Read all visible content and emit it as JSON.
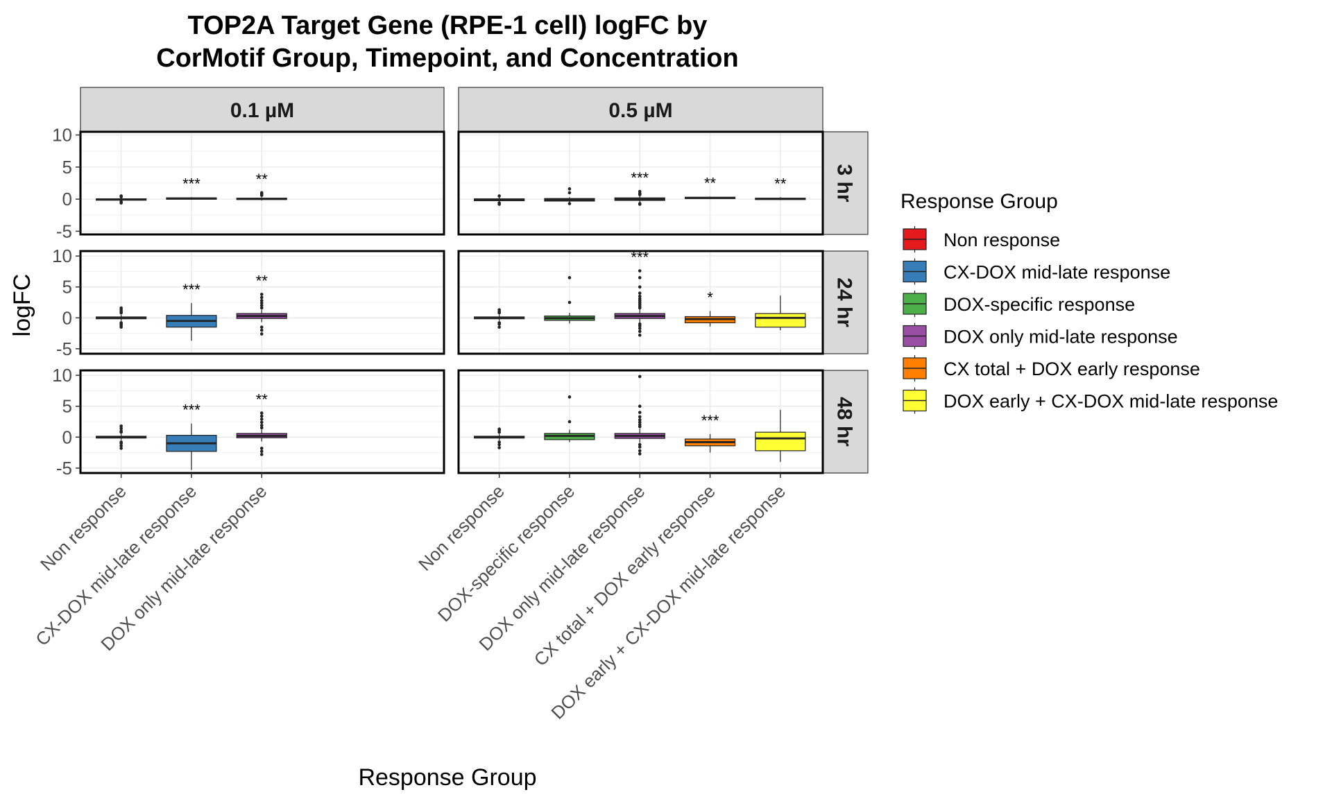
{
  "chart_data": {
    "type": "box",
    "title_lines": [
      "TOP2A Target Gene (RPE-1 cell) logFC by",
      "CorMotif Group, Timepoint, and Concentration"
    ],
    "xlabel": "Response Group",
    "ylabel": "logFC",
    "y_ticks": [
      -5,
      0,
      5,
      10
    ],
    "legend": {
      "title": "Response Group",
      "position": "right",
      "entries": [
        {
          "label": "Non response",
          "color": "#E41A1C"
        },
        {
          "label": "CX-DOX mid-late response",
          "color": "#377EB8"
        },
        {
          "label": "DOX-specific response",
          "color": "#4DAF4A"
        },
        {
          "label": "DOX only mid-late response",
          "color": "#984EA3"
        },
        {
          "label": "CX total + DOX early response",
          "color": "#FF7F00"
        },
        {
          "label": "DOX early + CX-DOX mid-late response",
          "color": "#FFFF33"
        }
      ]
    },
    "facet_cols": [
      {
        "label": "0.1 µM",
        "categories": [
          "Non response",
          "CX-DOX mid-late response",
          "DOX only mid-late response"
        ]
      },
      {
        "label": "0.5 µM",
        "categories": [
          "Non response",
          "DOX-specific response",
          "DOX only mid-late response",
          "CX total + DOX early response",
          "DOX early + CX-DOX mid-late response"
        ]
      }
    ],
    "facet_rows": [
      {
        "label": "3 hr",
        "ylim": [
          -5.5,
          10.5
        ]
      },
      {
        "label": "24 hr",
        "ylim": [
          -5.8,
          10.8
        ]
      },
      {
        "label": "48 hr",
        "ylim": [
          -5.8,
          10.8
        ]
      }
    ],
    "panels": [
      {
        "row": 0,
        "col": 0,
        "boxes": [
          {
            "group": "Non response",
            "q1": -0.15,
            "median": -0.05,
            "q3": 0.05,
            "whisker_low": -0.3,
            "whisker_high": 0.2,
            "outliers": [
              -0.6,
              -0.4,
              0.35,
              0.5
            ],
            "sig": ""
          },
          {
            "group": "CX-DOX mid-late response",
            "q1": 0.0,
            "median": 0.1,
            "q3": 0.2,
            "whisker_low": -0.1,
            "whisker_high": 0.3,
            "outliers": [],
            "sig": "***"
          },
          {
            "group": "DOX only mid-late response",
            "q1": -0.05,
            "median": 0.05,
            "q3": 0.15,
            "whisker_low": -0.2,
            "whisker_high": 0.3,
            "outliers": [
              0.6,
              0.8,
              1.0
            ],
            "sig": "**"
          }
        ]
      },
      {
        "row": 0,
        "col": 1,
        "boxes": [
          {
            "group": "Non response",
            "q1": -0.25,
            "median": -0.1,
            "q3": 0.05,
            "whisker_low": -0.5,
            "whisker_high": 0.3,
            "outliers": [
              -0.8,
              -0.6,
              0.5
            ],
            "sig": ""
          },
          {
            "group": "DOX-specific response",
            "q1": -0.3,
            "median": -0.1,
            "q3": 0.1,
            "whisker_low": -0.5,
            "whisker_high": 0.3,
            "outliers": [
              1.6,
              1.0,
              -0.7
            ],
            "sig": ""
          },
          {
            "group": "DOX only mid-late response",
            "q1": -0.2,
            "median": 0.0,
            "q3": 0.2,
            "whisker_low": -0.5,
            "whisker_high": 0.5,
            "outliers": [
              0.7,
              0.9,
              1.2,
              -0.7,
              -0.8
            ],
            "sig": "***"
          },
          {
            "group": "CX total + DOX early response",
            "q1": 0.1,
            "median": 0.2,
            "q3": 0.3,
            "whisker_low": 0.0,
            "whisker_high": 0.4,
            "outliers": [],
            "sig": "**"
          },
          {
            "group": "DOX early + CX-DOX mid-late response",
            "q1": -0.05,
            "median": 0.05,
            "q3": 0.15,
            "whisker_low": -0.15,
            "whisker_high": 0.3,
            "outliers": [],
            "sig": "**"
          }
        ]
      },
      {
        "row": 1,
        "col": 0,
        "boxes": [
          {
            "group": "Non response",
            "q1": -0.15,
            "median": 0.0,
            "q3": 0.15,
            "whisker_low": -0.5,
            "whisker_high": 0.5,
            "outliers": [
              -1.5,
              -1.2,
              -1.0,
              -0.8,
              0.8,
              1.0,
              1.3,
              1.6
            ],
            "sig": ""
          },
          {
            "group": "CX-DOX mid-late response",
            "q1": -1.5,
            "median": -0.5,
            "q3": 0.4,
            "whisker_low": -3.7,
            "whisker_high": 2.4,
            "outliers": [],
            "sig": "***"
          },
          {
            "group": "DOX only mid-late response",
            "q1": -0.1,
            "median": 0.3,
            "q3": 0.7,
            "whisker_low": -0.7,
            "whisker_high": 1.3,
            "outliers": [
              1.6,
              2.0,
              2.4,
              2.8,
              3.3,
              3.8,
              -1.5,
              -2.0,
              -2.6
            ],
            "sig": "**"
          }
        ]
      },
      {
        "row": 1,
        "col": 1,
        "boxes": [
          {
            "group": "Non response",
            "q1": -0.15,
            "median": 0.0,
            "q3": 0.15,
            "whisker_low": -0.5,
            "whisker_high": 0.5,
            "outliers": [
              -1.5,
              -1.0,
              -0.8,
              0.8,
              1.0,
              1.3
            ],
            "sig": ""
          },
          {
            "group": "DOX-specific response",
            "q1": -0.4,
            "median": -0.05,
            "q3": 0.3,
            "whisker_low": -0.9,
            "whisker_high": 0.8,
            "outliers": [
              6.5,
              2.5
            ],
            "sig": ""
          },
          {
            "group": "DOX only mid-late response",
            "q1": -0.1,
            "median": 0.3,
            "q3": 0.7,
            "whisker_low": -0.8,
            "whisker_high": 1.4,
            "outliers": [
              1.6,
              1.9,
              2.2,
              2.5,
              2.8,
              3.1,
              3.5,
              4.0,
              5.0,
              6.5,
              7.6,
              -1.0,
              -1.3,
              -1.7,
              -2.2,
              -2.8
            ],
            "sig": "***"
          },
          {
            "group": "CX total + DOX early response",
            "q1": -0.8,
            "median": -0.2,
            "q3": 0.2,
            "whisker_low": -1.4,
            "whisker_high": 1.1,
            "outliers": [],
            "sig": "*"
          },
          {
            "group": "DOX early + CX-DOX mid-late response",
            "q1": -1.5,
            "median": 0.0,
            "q3": 0.7,
            "whisker_low": -2.0,
            "whisker_high": 3.6,
            "outliers": [],
            "sig": ""
          }
        ]
      },
      {
        "row": 2,
        "col": 0,
        "boxes": [
          {
            "group": "Non response",
            "q1": -0.15,
            "median": 0.0,
            "q3": 0.15,
            "whisker_low": -0.5,
            "whisker_high": 0.5,
            "outliers": [
              -1.8,
              -1.4,
              -1.0,
              -0.8,
              0.8,
              1.0,
              1.4,
              1.8
            ],
            "sig": ""
          },
          {
            "group": "CX-DOX mid-late response",
            "q1": -2.3,
            "median": -1.0,
            "q3": 0.3,
            "whisker_low": -5.3,
            "whisker_high": 2.2,
            "outliers": [],
            "sig": "***"
          },
          {
            "group": "DOX only mid-late response",
            "q1": -0.1,
            "median": 0.2,
            "q3": 0.6,
            "whisker_low": -0.7,
            "whisker_high": 1.2,
            "outliers": [
              1.5,
              1.9,
              2.4,
              2.9,
              3.4,
              3.9,
              -1.8,
              -2.3,
              -2.8
            ],
            "sig": "**"
          }
        ]
      },
      {
        "row": 2,
        "col": 1,
        "boxes": [
          {
            "group": "Non response",
            "q1": -0.15,
            "median": 0.0,
            "q3": 0.15,
            "whisker_low": -0.5,
            "whisker_high": 0.5,
            "outliers": [
              -1.7,
              -1.2,
              -0.8,
              0.8,
              1.1,
              1.3
            ],
            "sig": ""
          },
          {
            "group": "DOX-specific response",
            "q1": -0.4,
            "median": 0.2,
            "q3": 0.6,
            "whisker_low": -0.8,
            "whisker_high": 1.2,
            "outliers": [
              6.5,
              2.5
            ],
            "sig": ""
          },
          {
            "group": "DOX only mid-late response",
            "q1": -0.2,
            "median": 0.2,
            "q3": 0.6,
            "whisker_low": -0.9,
            "whisker_high": 1.4,
            "outliers": [
              1.7,
              2.0,
              2.4,
              2.8,
              3.3,
              4.0,
              5.0,
              9.8,
              -1.2,
              -1.6,
              -2.2,
              -2.7
            ],
            "sig": ""
          },
          {
            "group": "CX total + DOX early response",
            "q1": -1.4,
            "median": -0.8,
            "q3": -0.3,
            "whisker_low": -2.5,
            "whisker_high": 0.5,
            "outliers": [],
            "sig": "***"
          },
          {
            "group": "DOX early + CX-DOX mid-late response",
            "q1": -2.2,
            "median": -0.2,
            "q3": 0.8,
            "whisker_low": -4.0,
            "whisker_high": 4.4,
            "outliers": [],
            "sig": ""
          }
        ]
      }
    ]
  }
}
